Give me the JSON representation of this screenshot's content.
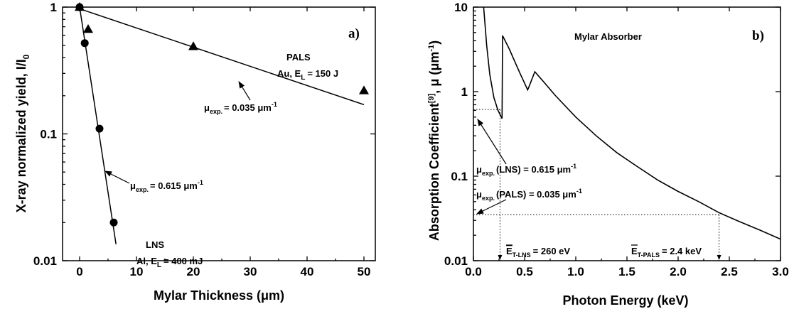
{
  "chart_data": [
    {
      "panel": "a)",
      "type": "scatter",
      "xlabel": "Mylar Thickness (μm)",
      "ylabel": "X-ray normalized yield, I/I",
      "ylabel_sub": "0",
      "xlim": [
        -3,
        52
      ],
      "ylim": [
        0.01,
        1
      ],
      "yscale": "log",
      "xticks": [
        0,
        10,
        20,
        30,
        40,
        50
      ],
      "xtick_labels": [
        "0",
        "10",
        "20",
        "30",
        "40",
        "50"
      ],
      "yticks": [
        0.01,
        0.1,
        1
      ],
      "ytick_labels": [
        "0.01",
        "0.1",
        "1"
      ],
      "series": [
        {
          "marker": "circle",
          "x": [
            0,
            0.9,
            3.5,
            6
          ],
          "y": [
            1.0,
            0.52,
            0.11,
            0.02
          ]
        },
        {
          "marker": "triangle",
          "x": [
            0,
            1.5,
            20,
            50
          ],
          "y": [
            1.0,
            0.67,
            0.49,
            0.22
          ]
        }
      ],
      "fit_lines": [
        {
          "x": [
            0,
            6.4
          ],
          "y": [
            1.0,
            0.0135
          ]
        },
        {
          "x": [
            0,
            50
          ],
          "y": [
            0.97,
            0.17
          ]
        }
      ],
      "annotations": {
        "lns_title": "LNS",
        "lns_text": "Al, E",
        "lns_sub": "L",
        "lns_val": "= 400 mJ",
        "pals_title": "PALS",
        "pals_text": "Au, E",
        "pals_sub": "L",
        "pals_val": "= 150 J",
        "mu_symbol": "μ",
        "mu_sub": "exp.",
        "mu_lns_val": "= 0.615 μm",
        "mu_pals_val": "= 0.035 μm",
        "mu_sup": "-1"
      }
    },
    {
      "panel": "b)",
      "type": "line",
      "title": "Mylar Absorber",
      "xlabel": "Photon Energy (keV)",
      "ylabel": "Absorption Coefficient",
      "ylabel_sup": "[9]",
      "ylabel_tail": ", μ (μm",
      "ylabel_tail_sup": "-1",
      "ylabel_close": ")",
      "xlim": [
        0,
        3.0
      ],
      "ylim": [
        0.01,
        10
      ],
      "yscale": "log",
      "xticks": [
        0,
        0.5,
        1.0,
        1.5,
        2.0,
        2.5,
        3.0
      ],
      "xtick_labels": [
        "0.0",
        "0.5",
        "1.0",
        "1.5",
        "2.0",
        "2.5",
        "3.0"
      ],
      "yticks": [
        0.01,
        0.1,
        1,
        10
      ],
      "ytick_labels": [
        "0.01",
        "0.1",
        "1",
        "10"
      ],
      "series": [
        {
          "x": [
            0.1,
            0.13,
            0.16,
            0.2,
            0.24,
            0.28,
            0.285,
            0.35,
            0.45,
            0.53,
            0.54,
            0.6,
            0.7,
            0.8,
            1.0,
            1.2,
            1.4,
            1.6,
            1.8,
            2.0,
            2.2,
            2.4,
            2.6,
            2.8,
            3.0
          ],
          "y": [
            10,
            3.5,
            1.6,
            0.85,
            0.6,
            0.48,
            4.6,
            3.2,
            1.7,
            1.05,
            1.12,
            1.72,
            1.25,
            0.9,
            0.5,
            0.3,
            0.19,
            0.13,
            0.09,
            0.066,
            0.05,
            0.037,
            0.029,
            0.023,
            0.018
          ]
        }
      ],
      "reference_points": [
        {
          "x": 0.26,
          "y": 0.615
        },
        {
          "x": 2.4,
          "y": 0.035
        }
      ],
      "annotations": {
        "mu_symbol": "μ",
        "mu_sub": "exp.",
        "lns_paren": "(LNS) = 0.615 μm",
        "pals_paren": "(PALS) = 0.035 μm",
        "mu_sup": "-1",
        "e_lns_symbol": "E",
        "e_lns_sub": "T-LNS",
        "e_lns_val": "= 260 eV",
        "e_pals_symbol": "E",
        "e_pals_sub": "T-PALS",
        "e_pals_val": "= 2.4 keV"
      }
    }
  ]
}
